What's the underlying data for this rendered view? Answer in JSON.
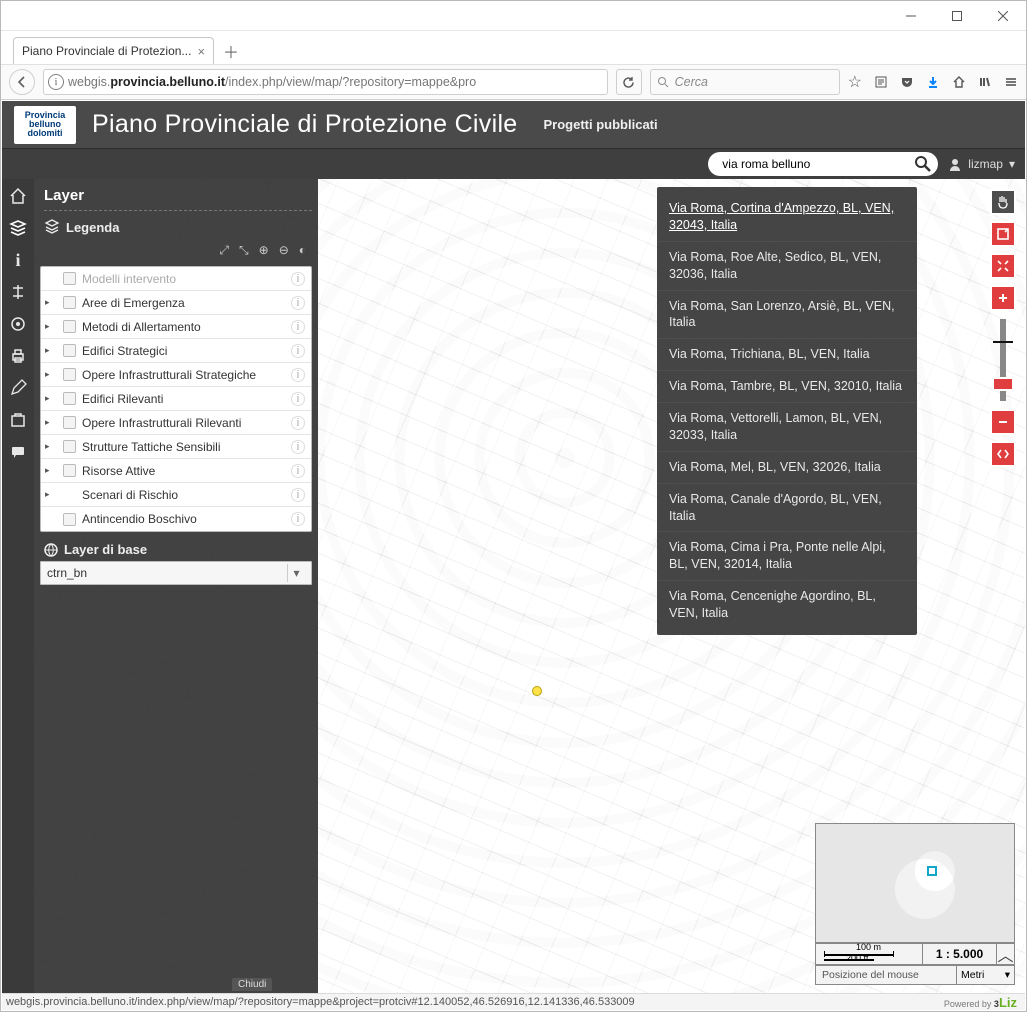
{
  "browser": {
    "tab_title": "Piano Provinciale di Protezion...",
    "url_plain_prefix": "webgis.",
    "url_bold": "provincia.belluno.it",
    "url_plain_suffix": "/index.php/view/map/?repository=mappe&pro",
    "search_placeholder": "Cerca",
    "status_url": "webgis.provincia.belluno.it/index.php/view/map/?repository=mappe&project=protciv#12.140052,46.526916,12.141336,46.533009"
  },
  "app": {
    "logo_text": "Provincia belluno dolomiti",
    "title": "Piano Provinciale di Protezione Civile",
    "subtitle_link": "Progetti pubblicati",
    "search_value": "via roma belluno",
    "user_label": "lizmap",
    "powered_label": "Powered by",
    "powered_brand_prefix": "3",
    "powered_brand": "Liz"
  },
  "panel": {
    "title": "Layer",
    "legend_label": "Legenda",
    "base_label": "Layer di base",
    "base_selected": "ctrn_bn",
    "close_label": "Chiudi",
    "layers": [
      {
        "name": "Modelli intervento",
        "expandable": false,
        "disabled": true,
        "checkbox": true
      },
      {
        "name": "Aree di Emergenza",
        "expandable": true,
        "disabled": false,
        "checkbox": true
      },
      {
        "name": "Metodi di Allertamento",
        "expandable": true,
        "disabled": false,
        "checkbox": true
      },
      {
        "name": "Edifici Strategici",
        "expandable": true,
        "disabled": false,
        "checkbox": true
      },
      {
        "name": "Opere Infrastrutturali Strategiche",
        "expandable": true,
        "disabled": false,
        "checkbox": true
      },
      {
        "name": "Edifici Rilevanti",
        "expandable": true,
        "disabled": false,
        "checkbox": true
      },
      {
        "name": "Opere Infrastrutturali Rilevanti",
        "expandable": true,
        "disabled": false,
        "checkbox": true
      },
      {
        "name": "Strutture Tattiche Sensibili",
        "expandable": true,
        "disabled": false,
        "checkbox": true
      },
      {
        "name": "Risorse Attive",
        "expandable": true,
        "disabled": false,
        "checkbox": true
      },
      {
        "name": "Scenari di Rischio",
        "expandable": true,
        "disabled": false,
        "checkbox": false
      },
      {
        "name": "Antincendio Boschivo",
        "expandable": false,
        "disabled": false,
        "checkbox": true
      }
    ]
  },
  "results": [
    "Via Roma, Cortina d'Ampezzo, BL, VEN, 32043, Italia",
    "Via Roma, Roe Alte, Sedico, BL, VEN, 32036, Italia",
    "Via Roma, San Lorenzo, Arsiè, BL, VEN, Italia",
    "Via Roma, Trichiana, BL, VEN, Italia",
    "Via Roma, Tambre, BL, VEN, 32010, Italia",
    "Via Roma, Vettorelli, Lamon, BL, VEN, 32033, Italia",
    "Via Roma, Mel, BL, VEN, 32026, Italia",
    "Via Roma, Canale d'Agordo, BL, VEN, Italia",
    "Via Roma, Cima i Pra, Ponte nelle Alpi, BL, VEN, 32014, Italia",
    "Via Roma, Cencenighe Agordino, BL, VEN, Italia"
  ],
  "scale": {
    "metric": "100 m",
    "imperial": "200 ft",
    "ratio": "1 : 5.000",
    "mouse_label": "Posizione del mouse",
    "unit": "Metri"
  },
  "colors": {
    "accent_red": "#e03e3e",
    "panel_dark": "#3a3a3a",
    "header": "#4a4a4a"
  }
}
